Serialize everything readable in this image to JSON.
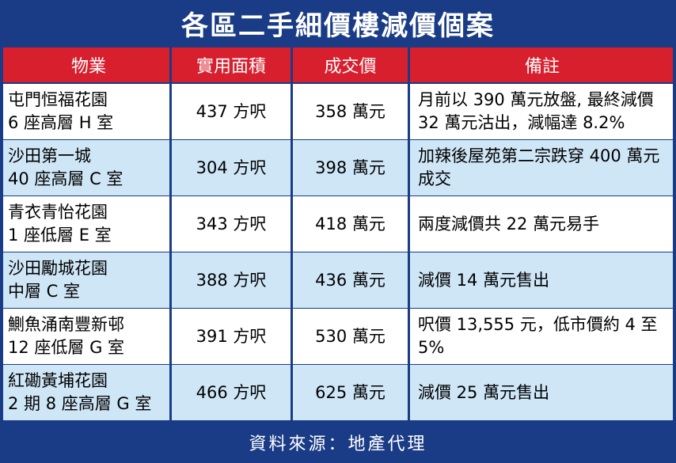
{
  "title": "各區二手細價樓減價個案",
  "header": {
    "property": "物業",
    "area": "實用面積",
    "price": "成交價",
    "remarks": "備註"
  },
  "rows": [
    {
      "name_line1": "屯門恒福花園",
      "name_line2": "6 座高層 H 室",
      "area": "437 方呎",
      "price": "358 萬元",
      "remarks": "月前以 390 萬元放盤, 最終減價 32 萬元沽出，減幅達 8.2%"
    },
    {
      "name_line1": "沙田第一城",
      "name_line2": "40 座高層 C 室",
      "area": "304 方呎",
      "price": "398 萬元",
      "remarks": "加辣後屋苑第二宗跌穿 400 萬元成交"
    },
    {
      "name_line1": "青衣青怡花園",
      "name_line2": "1 座低層 E 室",
      "area": "343 方呎",
      "price": "418 萬元",
      "remarks": "兩度減價共 22 萬元易手"
    },
    {
      "name_line1": "沙田勵城花園",
      "name_line2": "中層 C 室",
      "area": "388 方呎",
      "price": "436 萬元",
      "remarks": "減價 14 萬元售出"
    },
    {
      "name_line1": "鰂魚涌南豐新邨",
      "name_line2": "12 座低層 G 室",
      "area": "391 方呎",
      "price": "530 萬元",
      "remarks": "呎價 13,555 元，低市價約 4 至 5%"
    },
    {
      "name_line1": "紅磡黃埔花園",
      "name_line2": "2 期 8 座高層 G 室",
      "area": "466 方呎",
      "price": "625 萬元",
      "remarks": "減價 25 萬元售出"
    }
  ],
  "footer": "資料來源：地產代理",
  "colors": {
    "navy": "#1a3b86",
    "red": "#d81f2e",
    "light_blue": "#cfe6f7"
  }
}
